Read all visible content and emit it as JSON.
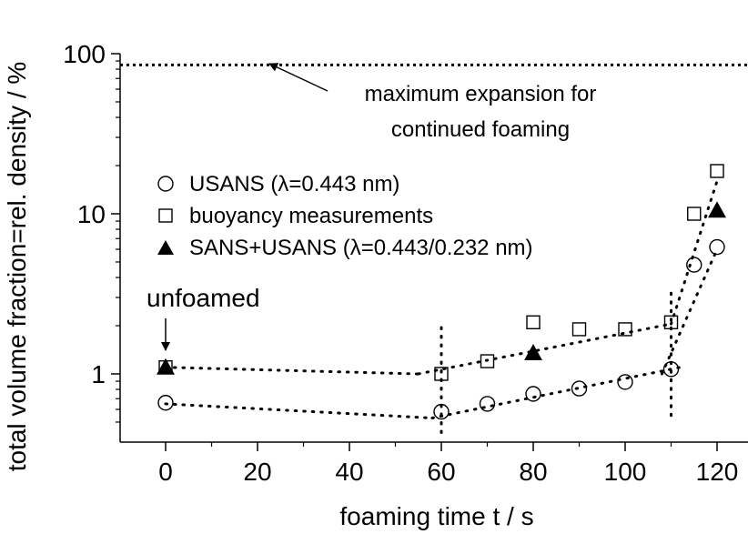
{
  "chart_data": {
    "type": "scatter",
    "xlabel": "foaming time t / s",
    "ylabel": "total volume fraction=rel. density / %",
    "xlim": [
      -8,
      128
    ],
    "ylim": [
      0.42,
      120
    ],
    "yscale": "log",
    "grid": false,
    "legend_position": "center-left",
    "x_ticks": [
      0,
      20,
      40,
      60,
      80,
      100,
      120
    ],
    "y_ticks": [
      1,
      10,
      100
    ],
    "x_tick_labels": [
      "0",
      "20",
      "40",
      "60",
      "80",
      "100",
      "120"
    ],
    "y_tick_labels": [
      "1",
      "10",
      "100"
    ],
    "series": [
      {
        "name": "USANS (λ=0.443 nm)",
        "marker": "open-circle",
        "x": [
          0,
          60,
          70,
          80,
          90,
          100,
          110,
          115,
          120
        ],
        "y": [
          0.66,
          0.58,
          0.65,
          0.75,
          0.81,
          0.89,
          1.07,
          4.8,
          6.2
        ]
      },
      {
        "name": "buoyancy measurements",
        "marker": "open-square",
        "x": [
          0,
          60,
          70,
          80,
          90,
          100,
          110,
          115,
          120
        ],
        "y": [
          1.1,
          1.0,
          1.2,
          2.1,
          1.9,
          1.9,
          2.1,
          10.0,
          18.5
        ]
      },
      {
        "name": "SANS+USANS (λ=0.443/0.232 nm)",
        "marker": "filled-triangle",
        "x": [
          0,
          80,
          120
        ],
        "y": [
          1.1,
          1.35,
          10.5
        ]
      }
    ],
    "reference_line": {
      "y": 85,
      "style": "dotted"
    },
    "guide_lines": [
      {
        "style": "dotted",
        "x": [
          0,
          55
        ],
        "y": [
          1.1,
          1.0
        ]
      },
      {
        "style": "dotted",
        "x": [
          55,
          110
        ],
        "y": [
          1.0,
          2.05
        ]
      },
      {
        "style": "dotted",
        "x": [
          110,
          120
        ],
        "y": [
          2.05,
          16
        ]
      },
      {
        "style": "dotted",
        "x": [
          0,
          58
        ],
        "y": [
          0.65,
          0.53
        ]
      },
      {
        "style": "dotted",
        "x": [
          58,
          112
        ],
        "y": [
          0.53,
          1.1
        ]
      },
      {
        "style": "dotted",
        "x": [
          108,
          120
        ],
        "y": [
          1.0,
          6.0
        ]
      },
      {
        "style": "dotted",
        "x": [
          60,
          60
        ],
        "y": [
          0.43,
          2.1
        ]
      },
      {
        "style": "dotted",
        "x": [
          110,
          110
        ],
        "y": [
          0.55,
          3.4
        ]
      }
    ],
    "annotations": [
      {
        "text_lines": [
          "maximum expansion for",
          "continued foaming"
        ],
        "arrow_to": [
          22,
          85
        ]
      },
      {
        "text_lines": [
          "unfoamed"
        ],
        "arrow_to": [
          0,
          1.25
        ]
      }
    ]
  }
}
